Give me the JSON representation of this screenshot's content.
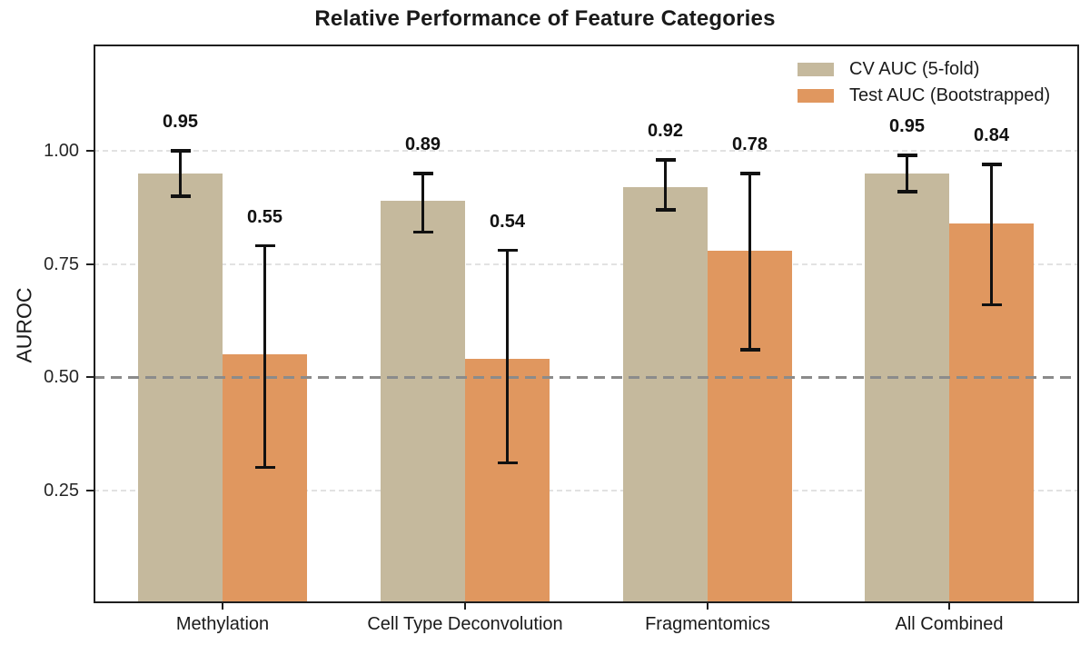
{
  "figure": {
    "title": "Relative Performance of Feature Categories"
  },
  "chart_data": {
    "type": "bar",
    "title": "Relative Performance of Feature Categories",
    "xlabel": "",
    "ylabel": "AUROC",
    "categories": [
      "Methylation",
      "Cell Type Deconvolution",
      "Fragmentomics",
      "All Combined"
    ],
    "series": [
      {
        "name": "CV AUC (5-fold)",
        "key": "cv-auc",
        "color": "#c5b99d",
        "values": [
          0.95,
          0.89,
          0.92,
          0.95
        ],
        "labels": [
          "0.95",
          "0.89",
          "0.92",
          "0.95"
        ],
        "error_low": [
          0.9,
          0.82,
          0.87,
          0.91
        ],
        "error_high": [
          1.0,
          0.95,
          0.98,
          0.99
        ]
      },
      {
        "name": "Test AUC (Bootstrapped)",
        "key": "test-auc",
        "color": "#e0975f",
        "values": [
          0.55,
          0.54,
          0.78,
          0.84
        ],
        "labels": [
          "0.55",
          "0.54",
          "0.78",
          "0.84"
        ],
        "error_low": [
          0.3,
          0.31,
          0.56,
          0.66
        ],
        "error_high": [
          0.79,
          0.78,
          0.95,
          0.97
        ]
      }
    ],
    "ytick_values": [
      0.25,
      0.5,
      0.75,
      1.0
    ],
    "ytick_labels": [
      "0.25",
      "0.50",
      "0.75",
      "1.00"
    ],
    "ylim": [
      0,
      1.235
    ],
    "gridline_values": [
      0.25,
      0.75,
      1.0
    ],
    "reference_line_value": 0.5,
    "legend_position": "upper-right",
    "grid": true,
    "colors": {
      "grid": "#e2e2e2",
      "reference": "#8b8b8b",
      "axis": "#1f1f1f",
      "text": "#1a1a1a",
      "error_bar": "#111111",
      "background": "#ffffff"
    }
  }
}
